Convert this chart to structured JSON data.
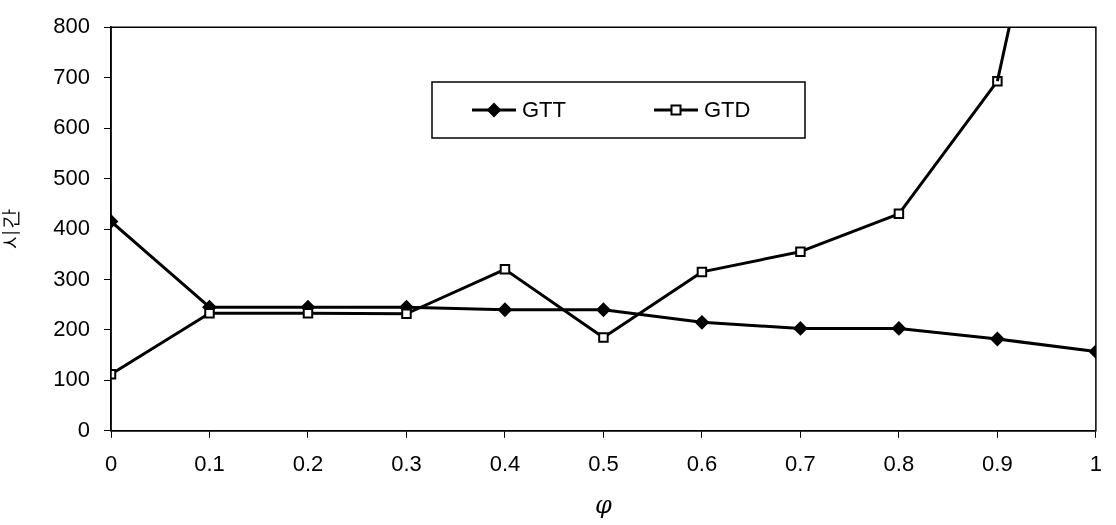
{
  "chart_data": {
    "type": "line",
    "xlabel": "φ",
    "ylabel": "시간",
    "x": [
      0,
      0.1,
      0.2,
      0.3,
      0.4,
      0.5,
      0.6,
      0.7,
      0.8,
      0.9,
      1
    ],
    "series": [
      {
        "name": "GTT",
        "color": "#000000",
        "marker": "diamond",
        "values": [
          415,
          245,
          245,
          245,
          240,
          240,
          215,
          203,
          203,
          182,
          157
        ]
      },
      {
        "name": "GTD",
        "color": "#000000",
        "marker": "square",
        "values": [
          112,
          233,
          233,
          232,
          320,
          185,
          315,
          355,
          430,
          693,
          null
        ]
      },
      {
        "color": "#000000",
        "marker": "none",
        "x": [
          0.9,
          0.912
        ],
        "values": [
          693,
          800
        ]
      }
    ],
    "xlim": [
      0,
      1
    ],
    "xticks": [
      0,
      0.1,
      0.2,
      0.3,
      0.4,
      0.5,
      0.6,
      0.7,
      0.8,
      0.9,
      1
    ],
    "ylim": [
      0,
      800
    ],
    "yticks": [
      0,
      100,
      200,
      300,
      400,
      500,
      600,
      700,
      800
    ],
    "grid": false,
    "legend": "top",
    "line_style": "solid"
  }
}
